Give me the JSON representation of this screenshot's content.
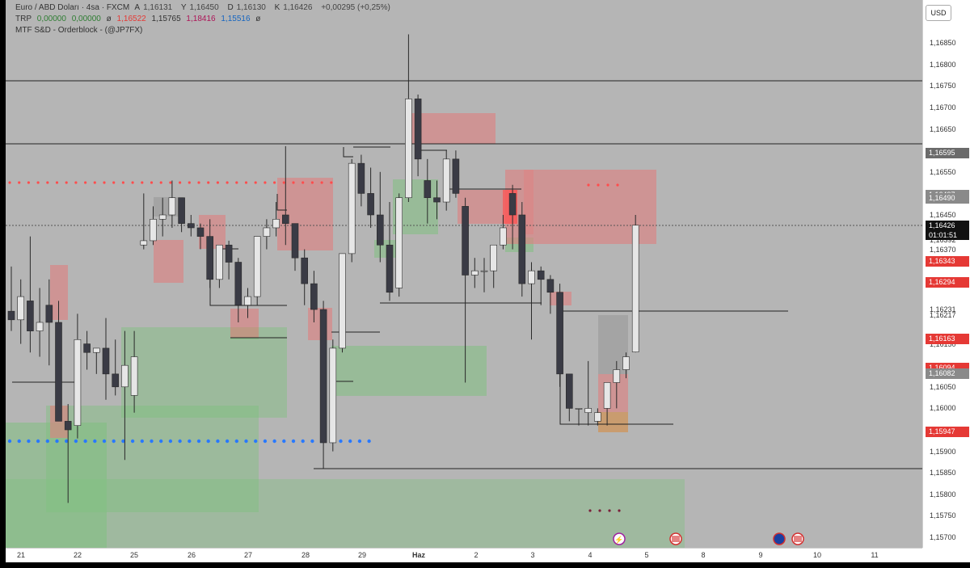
{
  "legend": {
    "symbol": "Euro / ABD Doları · 4sa · FXCM",
    "o_label": "A",
    "o": "1,16131",
    "h_label": "Y",
    "h": "1,16450",
    "l_label": "D",
    "l": "1,16130",
    "c_label": "K",
    "c": "1,16426",
    "change": "+0,00295 (+0,25%)",
    "trp_name": "TRP",
    "trp_v1": "0,00000",
    "trp_v2": "0,00000",
    "trp_sym": "ø",
    "trp_v3": "1,16522",
    "trp_v4": "1,15765",
    "trp_v5": "1,18416",
    "trp_v6": "1,15516",
    "trp_sym2": "ø",
    "indicator2": "MTF S&D - Orderblock - (@JP7FX)"
  },
  "currency_button": "USD",
  "colors": {
    "chart_bg": "#b5b5b5",
    "bull_candle": "#e6e6e6",
    "bear_candle": "#3a3b45",
    "supply_zone": "#e08585",
    "demand_zone": "#7fc07f",
    "red_dots": "#ff4d4d",
    "blue_dots": "#2979ff"
  },
  "price_axis": {
    "labels": [
      "1,16850",
      "1,16800",
      "1,16750",
      "1,16700",
      "1,16650",
      "1,16550",
      "1,16450",
      "1,16420",
      "1,16392",
      "1,16370",
      "1,16344",
      "1,16231",
      "1,16217",
      "1,16150",
      "1,16050",
      "1,16000",
      "1,15900",
      "1,15850",
      "1,15800",
      "1,15750",
      "1,15700"
    ],
    "current_price": "1,16426",
    "countdown": "01:01:51",
    "tags": [
      {
        "price": "1,16595",
        "color": "#6b6b6b"
      },
      {
        "price": "1,16497",
        "color": "#8a8a8a"
      },
      {
        "price": "1,16490",
        "color": "#8a8a8a"
      },
      {
        "price": "1,16343",
        "color": "#e53935"
      },
      {
        "price": "1,16294",
        "color": "#e53935"
      },
      {
        "price": "1,16163",
        "color": "#e53935"
      },
      {
        "price": "1,16094",
        "color": "#e53935"
      },
      {
        "price": "1,16082",
        "color": "#8a8a8a"
      },
      {
        "price": "1,15947",
        "color": "#e53935"
      }
    ]
  },
  "time_axis": [
    "21",
    "22",
    "25",
    "26",
    "27",
    "28",
    "29",
    "Haz",
    "2",
    "3",
    "4",
    "5",
    "8",
    "9",
    "10",
    "11"
  ],
  "events": [
    "lightning-icon",
    "us-flag-icon",
    "eu-flag-icon",
    "us-flag-icon"
  ],
  "chart_data": {
    "type": "candlestick",
    "symbol": "Euro / ABD Doları",
    "timeframe": "4sa",
    "ylim": [
      1.1566,
      1.169
    ],
    "candles": [
      {
        "o": 1.16226,
        "h": 1.1633,
        "l": 1.1618,
        "c": 1.16206
      },
      {
        "o": 1.16206,
        "h": 1.163,
        "l": 1.1615,
        "c": 1.1626
      },
      {
        "o": 1.1625,
        "h": 1.164,
        "l": 1.1613,
        "c": 1.1618
      },
      {
        "o": 1.1618,
        "h": 1.1628,
        "l": 1.1612,
        "c": 1.162
      },
      {
        "o": 1.1624,
        "h": 1.163,
        "l": 1.161,
        "c": 1.162
      },
      {
        "o": 1.162,
        "h": 1.1625,
        "l": 1.1597,
        "c": 1.1597
      },
      {
        "o": 1.1597,
        "h": 1.1601,
        "l": 1.1578,
        "c": 1.1595
      },
      {
        "o": 1.1596,
        "h": 1.1622,
        "l": 1.1593,
        "c": 1.1616
      },
      {
        "o": 1.1615,
        "h": 1.1618,
        "l": 1.1609,
        "c": 1.1613
      },
      {
        "o": 1.1613,
        "h": 1.1614,
        "l": 1.1608,
        "c": 1.1614
      },
      {
        "o": 1.1614,
        "h": 1.1621,
        "l": 1.1602,
        "c": 1.1608
      },
      {
        "o": 1.1608,
        "h": 1.1616,
        "l": 1.1603,
        "c": 1.1605
      },
      {
        "o": 1.1605,
        "h": 1.1618,
        "l": 1.1588,
        "c": 1.161
      },
      {
        "o": 1.1603,
        "h": 1.1618,
        "l": 1.1599,
        "c": 1.1612
      },
      {
        "o": 1.1638,
        "h": 1.165,
        "l": 1.1637,
        "c": 1.1639
      },
      {
        "o": 1.1639,
        "h": 1.1647,
        "l": 1.1638,
        "c": 1.1644
      },
      {
        "o": 1.1644,
        "h": 1.1649,
        "l": 1.164,
        "c": 1.1645
      },
      {
        "o": 1.1645,
        "h": 1.1653,
        "l": 1.1642,
        "c": 1.1649
      },
      {
        "o": 1.1649,
        "h": 1.1649,
        "l": 1.1641,
        "c": 1.1643
      },
      {
        "o": 1.1643,
        "h": 1.1645,
        "l": 1.164,
        "c": 1.1642
      },
      {
        "o": 1.1642,
        "h": 1.1643,
        "l": 1.1637,
        "c": 1.164
      },
      {
        "o": 1.164,
        "h": 1.1644,
        "l": 1.1628,
        "c": 1.163
      },
      {
        "o": 1.163,
        "h": 1.1638,
        "l": 1.1628,
        "c": 1.1638
      },
      {
        "o": 1.1638,
        "h": 1.1639,
        "l": 1.163,
        "c": 1.1634
      },
      {
        "o": 1.1634,
        "h": 1.1635,
        "l": 1.162,
        "c": 1.1624
      },
      {
        "o": 1.1624,
        "h": 1.1628,
        "l": 1.1621,
        "c": 1.1626
      },
      {
        "o": 1.1626,
        "h": 1.164,
        "l": 1.1624,
        "c": 1.164
      },
      {
        "o": 1.164,
        "h": 1.1644,
        "l": 1.1637,
        "c": 1.1642
      },
      {
        "o": 1.1642,
        "h": 1.1648,
        "l": 1.164,
        "c": 1.1644
      },
      {
        "o": 1.1645,
        "h": 1.1661,
        "l": 1.1638,
        "c": 1.1643
      },
      {
        "o": 1.1643,
        "h": 1.1643,
        "l": 1.1632,
        "c": 1.1635
      },
      {
        "o": 1.1635,
        "h": 1.1637,
        "l": 1.1624,
        "c": 1.1629
      },
      {
        "o": 1.1629,
        "h": 1.1632,
        "l": 1.162,
        "c": 1.1623
      },
      {
        "o": 1.1623,
        "h": 1.1625,
        "l": 1.1586,
        "c": 1.1592
      },
      {
        "o": 1.1592,
        "h": 1.1616,
        "l": 1.159,
        "c": 1.1614
      },
      {
        "o": 1.1614,
        "h": 1.1636,
        "l": 1.1613,
        "c": 1.1636
      },
      {
        "o": 1.1636,
        "h": 1.1658,
        "l": 1.1634,
        "c": 1.1657
      },
      {
        "o": 1.1657,
        "h": 1.1659,
        "l": 1.1647,
        "c": 1.165
      },
      {
        "o": 1.165,
        "h": 1.1656,
        "l": 1.1642,
        "c": 1.1645
      },
      {
        "o": 1.1645,
        "h": 1.1655,
        "l": 1.1634,
        "c": 1.1638
      },
      {
        "o": 1.1638,
        "h": 1.1648,
        "l": 1.1625,
        "c": 1.1627
      },
      {
        "o": 1.1628,
        "h": 1.165,
        "l": 1.1626,
        "c": 1.1649
      },
      {
        "o": 1.1649,
        "h": 1.1687,
        "l": 1.1648,
        "c": 1.1672
      },
      {
        "o": 1.1672,
        "h": 1.1673,
        "l": 1.1654,
        "c": 1.1658
      },
      {
        "o": 1.1653,
        "h": 1.1658,
        "l": 1.1643,
        "c": 1.1649
      },
      {
        "o": 1.1649,
        "h": 1.1653,
        "l": 1.1644,
        "c": 1.1648
      },
      {
        "o": 1.1648,
        "h": 1.166,
        "l": 1.1646,
        "c": 1.1658
      },
      {
        "o": 1.1658,
        "h": 1.166,
        "l": 1.1649,
        "c": 1.165
      },
      {
        "o": 1.1647,
        "h": 1.1649,
        "l": 1.1606,
        "c": 1.1631
      },
      {
        "o": 1.1631,
        "h": 1.1635,
        "l": 1.1628,
        "c": 1.1632
      },
      {
        "o": 1.1632,
        "h": 1.1635,
        "l": 1.1627,
        "c": 1.1632
      },
      {
        "o": 1.1632,
        "h": 1.1638,
        "l": 1.1628,
        "c": 1.1638
      },
      {
        "o": 1.1638,
        "h": 1.1645,
        "l": 1.1637,
        "c": 1.1642
      },
      {
        "o": 1.165,
        "h": 1.1652,
        "l": 1.1637,
        "c": 1.1645
      },
      {
        "o": 1.1645,
        "h": 1.1648,
        "l": 1.1626,
        "c": 1.1629
      },
      {
        "o": 1.1629,
        "h": 1.1634,
        "l": 1.1616,
        "c": 1.1632
      },
      {
        "o": 1.1632,
        "h": 1.1633,
        "l": 1.1624,
        "c": 1.163
      },
      {
        "o": 1.163,
        "h": 1.1631,
        "l": 1.1622,
        "c": 1.1627
      },
      {
        "o": 1.1627,
        "h": 1.1629,
        "l": 1.1605,
        "c": 1.1608
      },
      {
        "o": 1.1608,
        "h": 1.1608,
        "l": 1.1597,
        "c": 1.16
      },
      {
        "o": 1.16,
        "h": 1.16,
        "l": 1.1596,
        "c": 1.16
      },
      {
        "o": 1.1599,
        "h": 1.1611,
        "l": 1.1596,
        "c": 1.16
      },
      {
        "o": 1.1597,
        "h": 1.16,
        "l": 1.1596,
        "c": 1.1599
      },
      {
        "o": 1.16,
        "h": 1.1606,
        "l": 1.1596,
        "c": 1.1606
      },
      {
        "o": 1.1606,
        "h": 1.1611,
        "l": 1.16,
        "c": 1.1609
      },
      {
        "o": 1.1609,
        "h": 1.1613,
        "l": 1.1607,
        "c": 1.1612
      },
      {
        "o": 1.16131,
        "h": 1.1645,
        "l": 1.1613,
        "c": 1.16426
      }
    ]
  }
}
